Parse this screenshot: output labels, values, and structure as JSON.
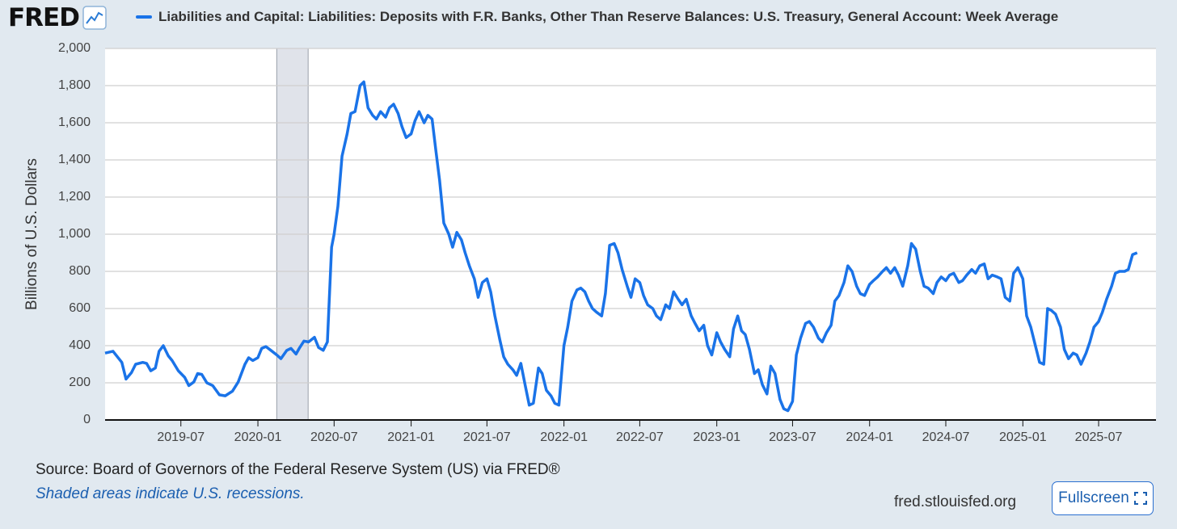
{
  "header": {
    "logo_text": "FRED",
    "series_title": "Liabilities and Capital: Liabilities: Deposits with F.R. Banks, Other Than Reserve Balances: U.S. Treasury, General Account: Week Average"
  },
  "chart_data": {
    "type": "line",
    "title": "Liabilities and Capital: Liabilities: Deposits with F.R. Banks, Other Than Reserve Balances: U.S. Treasury, General Account: Week Average",
    "ylabel": "Billions of U.S. Dollars",
    "xlabel": "",
    "ylim": [
      0,
      2000
    ],
    "xlim": [
      "2019-01-01",
      "2025-11-15"
    ],
    "yticks": [
      0,
      200,
      400,
      600,
      800,
      1000,
      1200,
      1400,
      1600,
      1800,
      2000
    ],
    "ytick_labels": [
      "0",
      "200",
      "400",
      "600",
      "800",
      "1,000",
      "1,200",
      "1,400",
      "1,600",
      "1,800",
      "2,000"
    ],
    "xticks": [
      "2019-07-01",
      "2020-01-01",
      "2020-07-01",
      "2021-01-01",
      "2021-07-01",
      "2022-01-01",
      "2022-07-01",
      "2023-01-01",
      "2023-07-01",
      "2024-01-01",
      "2024-07-01",
      "2025-01-01",
      "2025-07-01"
    ],
    "xtick_labels": [
      "2019-07",
      "2020-01",
      "2020-07",
      "2021-01",
      "2021-07",
      "2022-01",
      "2022-07",
      "2023-01",
      "2023-07",
      "2024-01",
      "2024-07",
      "2025-01",
      "2025-07"
    ],
    "recession": {
      "start": "2020-02-15",
      "end": "2020-04-30"
    },
    "grid": true,
    "series": [
      {
        "name": "Deposits with F.R. Banks: U.S. Treasury, General Account: Week Average",
        "color": "#1a73e8",
        "points": [
          [
            "2019-01-01",
            360
          ],
          [
            "2019-01-20",
            370
          ],
          [
            "2019-02-10",
            310
          ],
          [
            "2019-02-20",
            220
          ],
          [
            "2019-03-05",
            255
          ],
          [
            "2019-03-15",
            300
          ],
          [
            "2019-04-01",
            310
          ],
          [
            "2019-04-10",
            305
          ],
          [
            "2019-04-20",
            265
          ],
          [
            "2019-05-01",
            280
          ],
          [
            "2019-05-10",
            370
          ],
          [
            "2019-05-20",
            400
          ],
          [
            "2019-06-01",
            345
          ],
          [
            "2019-06-10",
            320
          ],
          [
            "2019-06-25",
            265
          ],
          [
            "2019-07-10",
            230
          ],
          [
            "2019-07-20",
            185
          ],
          [
            "2019-08-01",
            205
          ],
          [
            "2019-08-10",
            250
          ],
          [
            "2019-08-20",
            245
          ],
          [
            "2019-09-01",
            200
          ],
          [
            "2019-09-15",
            185
          ],
          [
            "2019-10-01",
            135
          ],
          [
            "2019-10-15",
            130
          ],
          [
            "2019-11-01",
            155
          ],
          [
            "2019-11-15",
            205
          ],
          [
            "2019-12-01",
            300
          ],
          [
            "2019-12-10",
            335
          ],
          [
            "2019-12-20",
            320
          ],
          [
            "2020-01-01",
            335
          ],
          [
            "2020-01-10",
            385
          ],
          [
            "2020-01-20",
            395
          ],
          [
            "2020-02-01",
            375
          ],
          [
            "2020-02-15",
            350
          ],
          [
            "2020-02-25",
            330
          ],
          [
            "2020-03-10",
            375
          ],
          [
            "2020-03-20",
            385
          ],
          [
            "2020-04-01",
            355
          ],
          [
            "2020-04-10",
            390
          ],
          [
            "2020-04-20",
            425
          ],
          [
            "2020-05-01",
            420
          ],
          [
            "2020-05-15",
            445
          ],
          [
            "2020-05-25",
            390
          ],
          [
            "2020-06-05",
            375
          ],
          [
            "2020-06-15",
            420
          ],
          [
            "2020-06-25",
            930
          ],
          [
            "2020-07-01",
            1000
          ],
          [
            "2020-07-10",
            1150
          ],
          [
            "2020-07-20",
            1420
          ],
          [
            "2020-08-01",
            1540
          ],
          [
            "2020-08-10",
            1650
          ],
          [
            "2020-08-20",
            1660
          ],
          [
            "2020-09-01",
            1800
          ],
          [
            "2020-09-10",
            1820
          ],
          [
            "2020-09-20",
            1680
          ],
          [
            "2020-10-01",
            1640
          ],
          [
            "2020-10-10",
            1620
          ],
          [
            "2020-10-20",
            1660
          ],
          [
            "2020-11-01",
            1630
          ],
          [
            "2020-11-10",
            1680
          ],
          [
            "2020-11-20",
            1700
          ],
          [
            "2020-12-01",
            1650
          ],
          [
            "2020-12-10",
            1580
          ],
          [
            "2020-12-20",
            1520
          ],
          [
            "2021-01-01",
            1540
          ],
          [
            "2021-01-10",
            1610
          ],
          [
            "2021-01-20",
            1660
          ],
          [
            "2021-02-01",
            1600
          ],
          [
            "2021-02-10",
            1640
          ],
          [
            "2021-02-20",
            1620
          ],
          [
            "2021-03-01",
            1450
          ],
          [
            "2021-03-10",
            1290
          ],
          [
            "2021-03-20",
            1060
          ],
          [
            "2021-04-01",
            1000
          ],
          [
            "2021-04-10",
            930
          ],
          [
            "2021-04-20",
            1010
          ],
          [
            "2021-05-01",
            970
          ],
          [
            "2021-05-10",
            900
          ],
          [
            "2021-05-20",
            830
          ],
          [
            "2021-06-01",
            760
          ],
          [
            "2021-06-10",
            660
          ],
          [
            "2021-06-20",
            740
          ],
          [
            "2021-07-01",
            760
          ],
          [
            "2021-07-10",
            690
          ],
          [
            "2021-07-20",
            560
          ],
          [
            "2021-08-01",
            430
          ],
          [
            "2021-08-10",
            340
          ],
          [
            "2021-08-20",
            300
          ],
          [
            "2021-09-01",
            270
          ],
          [
            "2021-09-10",
            240
          ],
          [
            "2021-09-20",
            305
          ],
          [
            "2021-10-01",
            180
          ],
          [
            "2021-10-10",
            80
          ],
          [
            "2021-10-20",
            90
          ],
          [
            "2021-11-01",
            280
          ],
          [
            "2021-11-10",
            250
          ],
          [
            "2021-11-20",
            160
          ],
          [
            "2021-12-01",
            130
          ],
          [
            "2021-12-10",
            90
          ],
          [
            "2021-12-20",
            80
          ],
          [
            "2022-01-01",
            400
          ],
          [
            "2022-01-10",
            500
          ],
          [
            "2022-01-20",
            640
          ],
          [
            "2022-02-01",
            700
          ],
          [
            "2022-02-10",
            710
          ],
          [
            "2022-02-20",
            690
          ],
          [
            "2022-03-01",
            640
          ],
          [
            "2022-03-10",
            600
          ],
          [
            "2022-03-20",
            580
          ],
          [
            "2022-04-01",
            560
          ],
          [
            "2022-04-10",
            680
          ],
          [
            "2022-04-20",
            940
          ],
          [
            "2022-05-01",
            950
          ],
          [
            "2022-05-10",
            900
          ],
          [
            "2022-05-20",
            810
          ],
          [
            "2022-06-01",
            720
          ],
          [
            "2022-06-10",
            660
          ],
          [
            "2022-06-20",
            760
          ],
          [
            "2022-07-01",
            740
          ],
          [
            "2022-07-10",
            670
          ],
          [
            "2022-07-20",
            620
          ],
          [
            "2022-08-01",
            600
          ],
          [
            "2022-08-10",
            560
          ],
          [
            "2022-08-20",
            540
          ],
          [
            "2022-09-01",
            620
          ],
          [
            "2022-09-10",
            600
          ],
          [
            "2022-09-20",
            690
          ],
          [
            "2022-10-01",
            650
          ],
          [
            "2022-10-10",
            620
          ],
          [
            "2022-10-20",
            650
          ],
          [
            "2022-11-01",
            560
          ],
          [
            "2022-11-10",
            520
          ],
          [
            "2022-11-20",
            480
          ],
          [
            "2022-12-01",
            510
          ],
          [
            "2022-12-10",
            400
          ],
          [
            "2022-12-20",
            350
          ],
          [
            "2023-01-01",
            470
          ],
          [
            "2023-01-10",
            420
          ],
          [
            "2023-01-20",
            380
          ],
          [
            "2023-02-01",
            340
          ],
          [
            "2023-02-10",
            490
          ],
          [
            "2023-02-20",
            560
          ],
          [
            "2023-03-01",
            480
          ],
          [
            "2023-03-10",
            460
          ],
          [
            "2023-03-20",
            380
          ],
          [
            "2023-04-01",
            250
          ],
          [
            "2023-04-10",
            270
          ],
          [
            "2023-04-20",
            190
          ],
          [
            "2023-05-01",
            140
          ],
          [
            "2023-05-10",
            290
          ],
          [
            "2023-05-20",
            250
          ],
          [
            "2023-06-01",
            110
          ],
          [
            "2023-06-10",
            60
          ],
          [
            "2023-06-20",
            50
          ],
          [
            "2023-07-01",
            100
          ],
          [
            "2023-07-10",
            350
          ],
          [
            "2023-07-20",
            440
          ],
          [
            "2023-08-01",
            520
          ],
          [
            "2023-08-10",
            530
          ],
          [
            "2023-08-20",
            500
          ],
          [
            "2023-09-01",
            440
          ],
          [
            "2023-09-10",
            420
          ],
          [
            "2023-09-20",
            470
          ],
          [
            "2023-10-01",
            510
          ],
          [
            "2023-10-10",
            640
          ],
          [
            "2023-10-20",
            670
          ],
          [
            "2023-11-01",
            740
          ],
          [
            "2023-11-10",
            830
          ],
          [
            "2023-11-20",
            800
          ],
          [
            "2023-12-01",
            720
          ],
          [
            "2023-12-10",
            680
          ],
          [
            "2023-12-20",
            670
          ],
          [
            "2024-01-01",
            730
          ],
          [
            "2024-01-10",
            750
          ],
          [
            "2024-01-20",
            770
          ],
          [
            "2024-02-01",
            800
          ],
          [
            "2024-02-10",
            820
          ],
          [
            "2024-02-20",
            790
          ],
          [
            "2024-03-01",
            820
          ],
          [
            "2024-03-10",
            780
          ],
          [
            "2024-03-20",
            720
          ],
          [
            "2024-04-01",
            830
          ],
          [
            "2024-04-10",
            950
          ],
          [
            "2024-04-20",
            920
          ],
          [
            "2024-05-01",
            800
          ],
          [
            "2024-05-10",
            720
          ],
          [
            "2024-05-20",
            710
          ],
          [
            "2024-06-01",
            680
          ],
          [
            "2024-06-10",
            740
          ],
          [
            "2024-06-20",
            770
          ],
          [
            "2024-07-01",
            750
          ],
          [
            "2024-07-10",
            780
          ],
          [
            "2024-07-20",
            790
          ],
          [
            "2024-08-01",
            740
          ],
          [
            "2024-08-10",
            750
          ],
          [
            "2024-08-20",
            780
          ],
          [
            "2024-09-01",
            810
          ],
          [
            "2024-09-10",
            790
          ],
          [
            "2024-09-20",
            830
          ],
          [
            "2024-10-01",
            840
          ],
          [
            "2024-10-10",
            760
          ],
          [
            "2024-10-20",
            780
          ],
          [
            "2024-11-01",
            770
          ],
          [
            "2024-11-10",
            760
          ],
          [
            "2024-11-20",
            660
          ],
          [
            "2024-12-01",
            640
          ],
          [
            "2024-12-10",
            790
          ],
          [
            "2024-12-20",
            820
          ],
          [
            "2025-01-01",
            760
          ],
          [
            "2025-01-10",
            560
          ],
          [
            "2025-01-20",
            500
          ],
          [
            "2025-02-01",
            390
          ],
          [
            "2025-02-10",
            310
          ],
          [
            "2025-02-20",
            300
          ],
          [
            "2025-03-01",
            600
          ],
          [
            "2025-03-10",
            590
          ],
          [
            "2025-03-20",
            570
          ],
          [
            "2025-04-01",
            500
          ],
          [
            "2025-04-10",
            380
          ],
          [
            "2025-04-20",
            330
          ],
          [
            "2025-05-01",
            360
          ],
          [
            "2025-05-10",
            350
          ],
          [
            "2025-05-20",
            300
          ],
          [
            "2025-06-01",
            360
          ],
          [
            "2025-06-10",
            420
          ],
          [
            "2025-06-20",
            500
          ],
          [
            "2025-07-01",
            530
          ],
          [
            "2025-07-10",
            580
          ],
          [
            "2025-07-20",
            650
          ],
          [
            "2025-08-01",
            720
          ],
          [
            "2025-08-10",
            790
          ],
          [
            "2025-08-20",
            800
          ],
          [
            "2025-09-01",
            800
          ],
          [
            "2025-09-10",
            810
          ],
          [
            "2025-09-20",
            890
          ],
          [
            "2025-10-01",
            900
          ]
        ]
      }
    ]
  },
  "footer": {
    "source": "Source: Board of Governors of the Federal Reserve System (US) via FRED®",
    "recession_note": "Shaded areas indicate U.S. recessions.",
    "site": "fred.stlouisfed.org",
    "fullscreen_label": "Fullscreen"
  }
}
